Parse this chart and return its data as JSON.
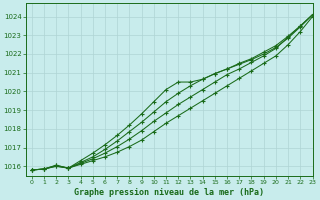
{
  "title": "Graphe pression niveau de la mer (hPa)",
  "background_color": "#c8ecec",
  "grid_color": "#afd4d4",
  "line_color": "#1a6b1a",
  "marker": "+",
  "xlim": [
    -0.5,
    23
  ],
  "ylim": [
    1015.5,
    1024.7
  ],
  "yticks": [
    1016,
    1017,
    1018,
    1019,
    1020,
    1021,
    1022,
    1023,
    1024
  ],
  "xticks": [
    0,
    1,
    2,
    3,
    4,
    5,
    6,
    7,
    8,
    9,
    10,
    11,
    12,
    13,
    14,
    15,
    16,
    17,
    18,
    19,
    20,
    21,
    22,
    23
  ],
  "series": [
    [
      1015.8,
      1015.85,
      1016.0,
      1015.9,
      1016.1,
      1016.3,
      1016.5,
      1016.75,
      1017.05,
      1017.4,
      1017.85,
      1018.3,
      1018.7,
      1019.1,
      1019.5,
      1019.9,
      1020.3,
      1020.7,
      1021.1,
      1021.5,
      1021.9,
      1022.5,
      1023.2,
      1024.0
    ],
    [
      1015.8,
      1015.85,
      1016.0,
      1015.9,
      1016.15,
      1016.4,
      1016.7,
      1017.05,
      1017.45,
      1017.9,
      1018.4,
      1018.85,
      1019.3,
      1019.7,
      1020.1,
      1020.5,
      1020.9,
      1021.2,
      1021.55,
      1021.9,
      1022.3,
      1022.9,
      1023.5,
      1024.1
    ],
    [
      1015.8,
      1015.85,
      1016.05,
      1015.9,
      1016.2,
      1016.5,
      1016.9,
      1017.35,
      1017.85,
      1018.35,
      1018.9,
      1019.45,
      1019.9,
      1020.3,
      1020.65,
      1020.95,
      1021.2,
      1021.5,
      1021.75,
      1022.1,
      1022.45,
      1022.95,
      1023.5,
      1024.1
    ],
    [
      1015.8,
      1015.85,
      1016.05,
      1015.9,
      1016.3,
      1016.7,
      1017.15,
      1017.65,
      1018.2,
      1018.8,
      1019.45,
      1020.1,
      1020.5,
      1020.5,
      1020.65,
      1020.95,
      1021.2,
      1021.45,
      1021.7,
      1022.0,
      1022.35,
      1022.85,
      1023.45,
      1024.1
    ]
  ]
}
